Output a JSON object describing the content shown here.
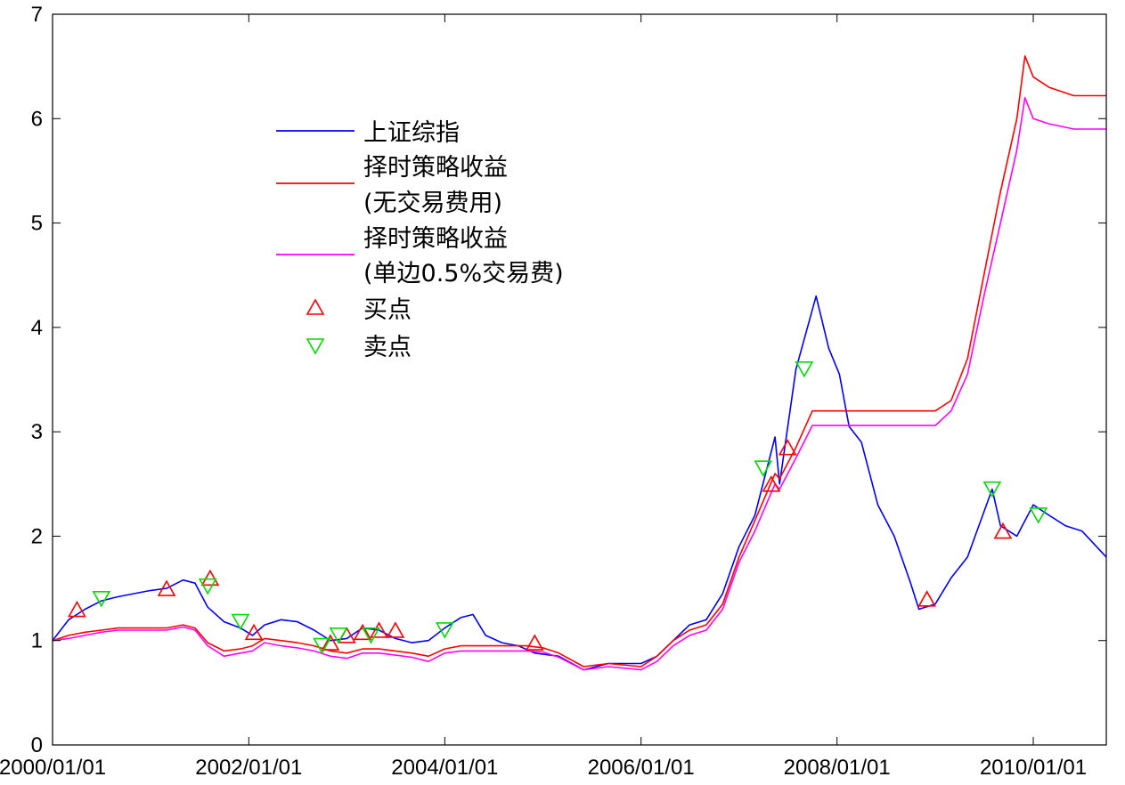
{
  "chart_data": {
    "type": "line",
    "title": "",
    "xlabel": "",
    "ylabel": "",
    "xlim": [
      "2000/01/01",
      "2010/09/30"
    ],
    "ylim": [
      0,
      7
    ],
    "yticks": [
      0,
      1,
      2,
      3,
      4,
      5,
      6,
      7
    ],
    "xticks": [
      "2000/01/01",
      "2002/01/01",
      "2004/01/01",
      "2006/01/01",
      "2008/01/01",
      "2010/01/01"
    ],
    "xtick_labels": [
      "2000/01/01",
      "2002/01/01",
      "2004/01/01",
      "2006/01/01",
      "2008/01/01",
      "2010/01/01"
    ],
    "grid": false,
    "legend_position": "upper-left-center",
    "series": [
      {
        "name": "上证综指",
        "color": "#0000ff",
        "x": [
          "2000/01/01",
          "2000/03/01",
          "2000/05/01",
          "2000/07/01",
          "2000/09/01",
          "2000/11/01",
          "2001/01/01",
          "2001/03/01",
          "2001/05/01",
          "2001/06/15",
          "2001/08/01",
          "2001/10/01",
          "2001/12/01",
          "2002/01/15",
          "2002/03/01",
          "2002/05/01",
          "2002/07/01",
          "2002/09/01",
          "2002/11/01",
          "2003/01/01",
          "2003/03/01",
          "2003/05/01",
          "2003/07/01",
          "2003/09/01",
          "2003/11/01",
          "2004/01/01",
          "2004/03/01",
          "2004/04/15",
          "2004/06/01",
          "2004/08/01",
          "2004/10/01",
          "2004/12/01",
          "2005/03/01",
          "2005/06/01",
          "2005/09/01",
          "2006/01/01",
          "2006/03/01",
          "2006/05/01",
          "2006/07/01",
          "2006/09/01",
          "2006/11/01",
          "2007/01/01",
          "2007/03/01",
          "2007/05/15",
          "2007/06/01",
          "2007/08/01",
          "2007/10/15",
          "2007/12/01",
          "2008/01/10",
          "2008/02/15",
          "2008/04/01",
          "2008/06/01",
          "2008/08/01",
          "2008/10/01",
          "2008/11/01",
          "2009/01/01",
          "2009/03/01",
          "2009/05/01",
          "2009/08/01",
          "2009/09/01",
          "2009/11/01",
          "2010/01/01",
          "2010/03/01",
          "2010/05/01",
          "2010/07/01",
          "2010/09/30"
        ],
        "values": [
          1.0,
          1.2,
          1.3,
          1.38,
          1.42,
          1.45,
          1.48,
          1.5,
          1.58,
          1.55,
          1.32,
          1.18,
          1.12,
          1.05,
          1.15,
          1.2,
          1.18,
          1.1,
          1.0,
          1.02,
          1.12,
          1.1,
          1.02,
          0.98,
          1.0,
          1.12,
          1.22,
          1.25,
          1.05,
          0.98,
          0.95,
          0.88,
          0.85,
          0.72,
          0.78,
          0.78,
          0.85,
          1.0,
          1.15,
          1.2,
          1.45,
          1.9,
          2.2,
          2.95,
          2.5,
          3.6,
          4.3,
          3.8,
          3.55,
          3.05,
          2.9,
          2.3,
          2.0,
          1.55,
          1.3,
          1.35,
          1.6,
          1.8,
          2.45,
          2.1,
          2.0,
          2.3,
          2.2,
          2.1,
          2.05,
          1.8
        ]
      },
      {
        "name": "择时策略收益\n(无交易费用)",
        "color": "#ff0000",
        "x": [
          "2000/01/01",
          "2000/03/01",
          "2000/05/01",
          "2000/07/01",
          "2000/09/01",
          "2000/11/01",
          "2001/01/01",
          "2001/03/01",
          "2001/05/01",
          "2001/06/15",
          "2001/08/01",
          "2001/10/01",
          "2001/12/01",
          "2002/01/15",
          "2002/03/01",
          "2002/05/01",
          "2002/07/01",
          "2002/09/01",
          "2002/11/01",
          "2003/01/01",
          "2003/03/01",
          "2003/05/01",
          "2003/07/01",
          "2003/09/01",
          "2003/11/01",
          "2004/01/01",
          "2004/03/01",
          "2004/05/01",
          "2004/07/01",
          "2004/09/01",
          "2004/11/01",
          "2005/01/01",
          "2005/03/01",
          "2005/06/01",
          "2005/09/01",
          "2006/01/01",
          "2006/03/01",
          "2006/05/01",
          "2006/07/01",
          "2006/09/01",
          "2006/11/01",
          "2007/01/01",
          "2007/03/01",
          "2007/05/15",
          "2007/06/01",
          "2007/08/01",
          "2007/10/01",
          "2008/01/01",
          "2009/01/01",
          "2009/03/01",
          "2009/05/01",
          "2009/07/01",
          "2009/09/01",
          "2009/11/01",
          "2009/12/01",
          "2010/01/01",
          "2010/03/01",
          "2010/06/01",
          "2010/09/30"
        ],
        "values": [
          1.0,
          1.05,
          1.08,
          1.1,
          1.12,
          1.12,
          1.12,
          1.12,
          1.15,
          1.12,
          0.98,
          0.9,
          0.92,
          0.95,
          1.02,
          1.0,
          0.98,
          0.95,
          0.9,
          0.88,
          0.92,
          0.92,
          0.9,
          0.88,
          0.85,
          0.92,
          0.95,
          0.95,
          0.95,
          0.95,
          0.95,
          0.93,
          0.88,
          0.75,
          0.78,
          0.75,
          0.85,
          1.0,
          1.1,
          1.15,
          1.35,
          1.8,
          2.15,
          2.6,
          2.55,
          2.85,
          3.2,
          3.2,
          3.2,
          3.3,
          3.7,
          4.5,
          5.3,
          6.0,
          6.6,
          6.4,
          6.3,
          6.22,
          6.22
        ]
      },
      {
        "name": "择时策略收益\n(单边0.5%交易费)",
        "color": "#ff00ff",
        "x": [
          "2000/01/01",
          "2000/03/01",
          "2000/05/01",
          "2000/07/01",
          "2000/09/01",
          "2000/11/01",
          "2001/01/01",
          "2001/03/01",
          "2001/05/01",
          "2001/06/15",
          "2001/08/01",
          "2001/10/01",
          "2001/12/01",
          "2002/01/15",
          "2002/03/01",
          "2002/05/01",
          "2002/07/01",
          "2002/09/01",
          "2002/11/01",
          "2003/01/01",
          "2003/03/01",
          "2003/05/01",
          "2003/07/01",
          "2003/09/01",
          "2003/11/01",
          "2004/01/01",
          "2004/03/01",
          "2004/05/01",
          "2004/07/01",
          "2004/09/01",
          "2004/11/01",
          "2005/01/01",
          "2005/03/01",
          "2005/06/01",
          "2005/09/01",
          "2006/01/01",
          "2006/03/01",
          "2006/05/01",
          "2006/07/01",
          "2006/09/01",
          "2006/11/01",
          "2007/01/01",
          "2007/03/01",
          "2007/05/15",
          "2007/06/01",
          "2007/08/01",
          "2007/10/01",
          "2008/01/01",
          "2009/01/01",
          "2009/03/01",
          "2009/05/01",
          "2009/07/01",
          "2009/09/01",
          "2009/11/01",
          "2009/12/01",
          "2010/01/01",
          "2010/03/01",
          "2010/06/01",
          "2010/09/30"
        ],
        "values": [
          1.0,
          1.02,
          1.05,
          1.08,
          1.1,
          1.1,
          1.1,
          1.1,
          1.13,
          1.1,
          0.95,
          0.85,
          0.88,
          0.9,
          0.98,
          0.95,
          0.93,
          0.9,
          0.85,
          0.83,
          0.88,
          0.88,
          0.86,
          0.84,
          0.8,
          0.88,
          0.9,
          0.9,
          0.9,
          0.9,
          0.9,
          0.89,
          0.84,
          0.72,
          0.75,
          0.72,
          0.8,
          0.95,
          1.05,
          1.1,
          1.3,
          1.75,
          2.05,
          2.5,
          2.45,
          2.75,
          3.06,
          3.06,
          3.06,
          3.2,
          3.55,
          4.3,
          5.0,
          5.7,
          6.2,
          6.0,
          5.95,
          5.9,
          5.9
        ]
      }
    ],
    "markers": [
      {
        "name": "买点",
        "symbol": "triangle-up",
        "color": "#ff0000",
        "x": [
          "2000/04/01",
          "2001/03/01",
          "2001/08/10",
          "2002/01/20",
          "2002/11/01",
          "2003/01/01",
          "2003/03/01",
          "2003/05/01",
          "2003/07/01",
          "2004/12/01",
          "2007/05/01",
          "2007/07/01",
          "2008/12/01",
          "2009/09/10"
        ],
        "values": [
          1.3,
          1.5,
          1.6,
          1.08,
          0.98,
          1.05,
          1.08,
          1.1,
          1.1,
          0.98,
          2.5,
          2.85,
          1.4,
          2.05
        ]
      },
      {
        "name": "卖点",
        "symbol": "triangle-down",
        "color": "#00dd00",
        "x": [
          "2000/07/01",
          "2001/08/01",
          "2001/12/01",
          "2002/10/01",
          "2002/12/01",
          "2003/04/01",
          "2004/01/01",
          "2007/04/01",
          "2007/09/01",
          "2009/08/01",
          "2010/01/20"
        ],
        "values": [
          1.4,
          1.52,
          1.18,
          0.95,
          1.05,
          1.05,
          1.1,
          2.65,
          3.6,
          2.45,
          2.2
        ]
      }
    ]
  }
}
